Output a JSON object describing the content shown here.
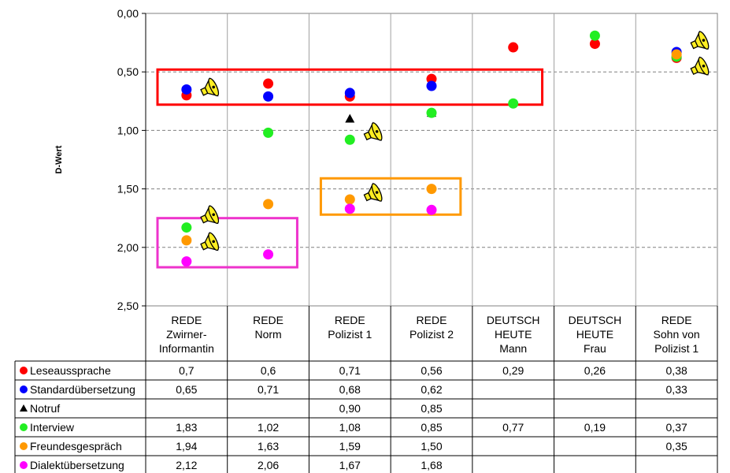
{
  "chart_data": {
    "type": "scatter",
    "ylabel": "D-Wert",
    "y_inverted": true,
    "ylim": [
      0,
      2.5
    ],
    "yticks": [
      "0,00",
      "0,50",
      "1,00",
      "1,50",
      "2,00",
      "2,50"
    ],
    "ytick_values": [
      0,
      0.5,
      1.0,
      1.5,
      2.0,
      2.5
    ],
    "gridlines": "dashed horizontal at 0.5 steps",
    "categories": [
      [
        "REDE",
        "Zwirner-",
        "Informantin"
      ],
      [
        "REDE",
        "Norm"
      ],
      [
        "REDE",
        "Polizist 1"
      ],
      [
        "REDE",
        "Polizist 2"
      ],
      [
        "DEUTSCH",
        "HEUTE",
        "Mann"
      ],
      [
        "DEUTSCH",
        "HEUTE",
        "Frau"
      ],
      [
        "REDE",
        "Sohn von",
        "Polizist 1"
      ]
    ],
    "series": [
      {
        "name": "Leseaussprache",
        "color": "#ff0000",
        "marker": "circle",
        "values": [
          0.7,
          0.6,
          0.71,
          0.56,
          0.29,
          0.26,
          0.38
        ],
        "labels": [
          "0,7",
          "0,6",
          "0,71",
          "0,56",
          "0,29",
          "0,26",
          "0,38"
        ]
      },
      {
        "name": "Standardübersetzung",
        "color": "#0000ff",
        "marker": "circle",
        "values": [
          0.65,
          0.71,
          0.68,
          0.62,
          null,
          null,
          0.33
        ],
        "labels": [
          "0,65",
          "0,71",
          "0,68",
          "0,62",
          "",
          "",
          "0,33"
        ]
      },
      {
        "name": "Notruf",
        "color": "#000000",
        "marker": "triangle",
        "values": [
          null,
          null,
          0.9,
          0.85,
          null,
          null,
          null
        ],
        "labels": [
          "",
          "",
          "0,90",
          "0,85",
          "",
          "",
          ""
        ]
      },
      {
        "name": "Interview",
        "color": "#22ee22",
        "marker": "circle",
        "values": [
          1.83,
          1.02,
          1.08,
          0.85,
          0.77,
          0.19,
          0.37
        ],
        "labels": [
          "1,83",
          "1,02",
          "1,08",
          "0,85",
          "0,77",
          "0,19",
          "0,37"
        ]
      },
      {
        "name": "Freundesgespräch",
        "color": "#ff9900",
        "marker": "circle",
        "values": [
          1.94,
          1.63,
          1.59,
          1.5,
          null,
          null,
          0.35
        ],
        "labels": [
          "1,94",
          "1,63",
          "1,59",
          "1,50",
          "",
          "",
          "0,35"
        ]
      },
      {
        "name": "Dialektübersetzung",
        "color": "#ff00ff",
        "marker": "circle",
        "values": [
          2.12,
          2.06,
          1.67,
          1.68,
          null,
          null,
          null
        ],
        "labels": [
          "2,12",
          "2,06",
          "1,67",
          "1,68",
          "",
          "",
          ""
        ]
      }
    ],
    "highlight_boxes": [
      {
        "color": "#ff0000",
        "from_category": 0,
        "to_category": 4,
        "y_range": [
          0.48,
          0.78
        ]
      },
      {
        "color": "#ff9900",
        "from_category": 2,
        "to_category": 3,
        "y_range": [
          1.41,
          1.72
        ]
      },
      {
        "color": "#ee33cc",
        "from_category": 0,
        "to_category": 1,
        "y_range": [
          1.75,
          2.17
        ]
      }
    ],
    "speaker_icons": [
      {
        "category": 0,
        "y": 0.65
      },
      {
        "category": 2,
        "y": 1.03
      },
      {
        "category": 2,
        "y": 1.55
      },
      {
        "category": 0,
        "y": 1.74
      },
      {
        "category": 0,
        "y": 1.97
      },
      {
        "category": 6,
        "y": 0.25
      },
      {
        "category": 6,
        "y": 0.47
      }
    ]
  }
}
